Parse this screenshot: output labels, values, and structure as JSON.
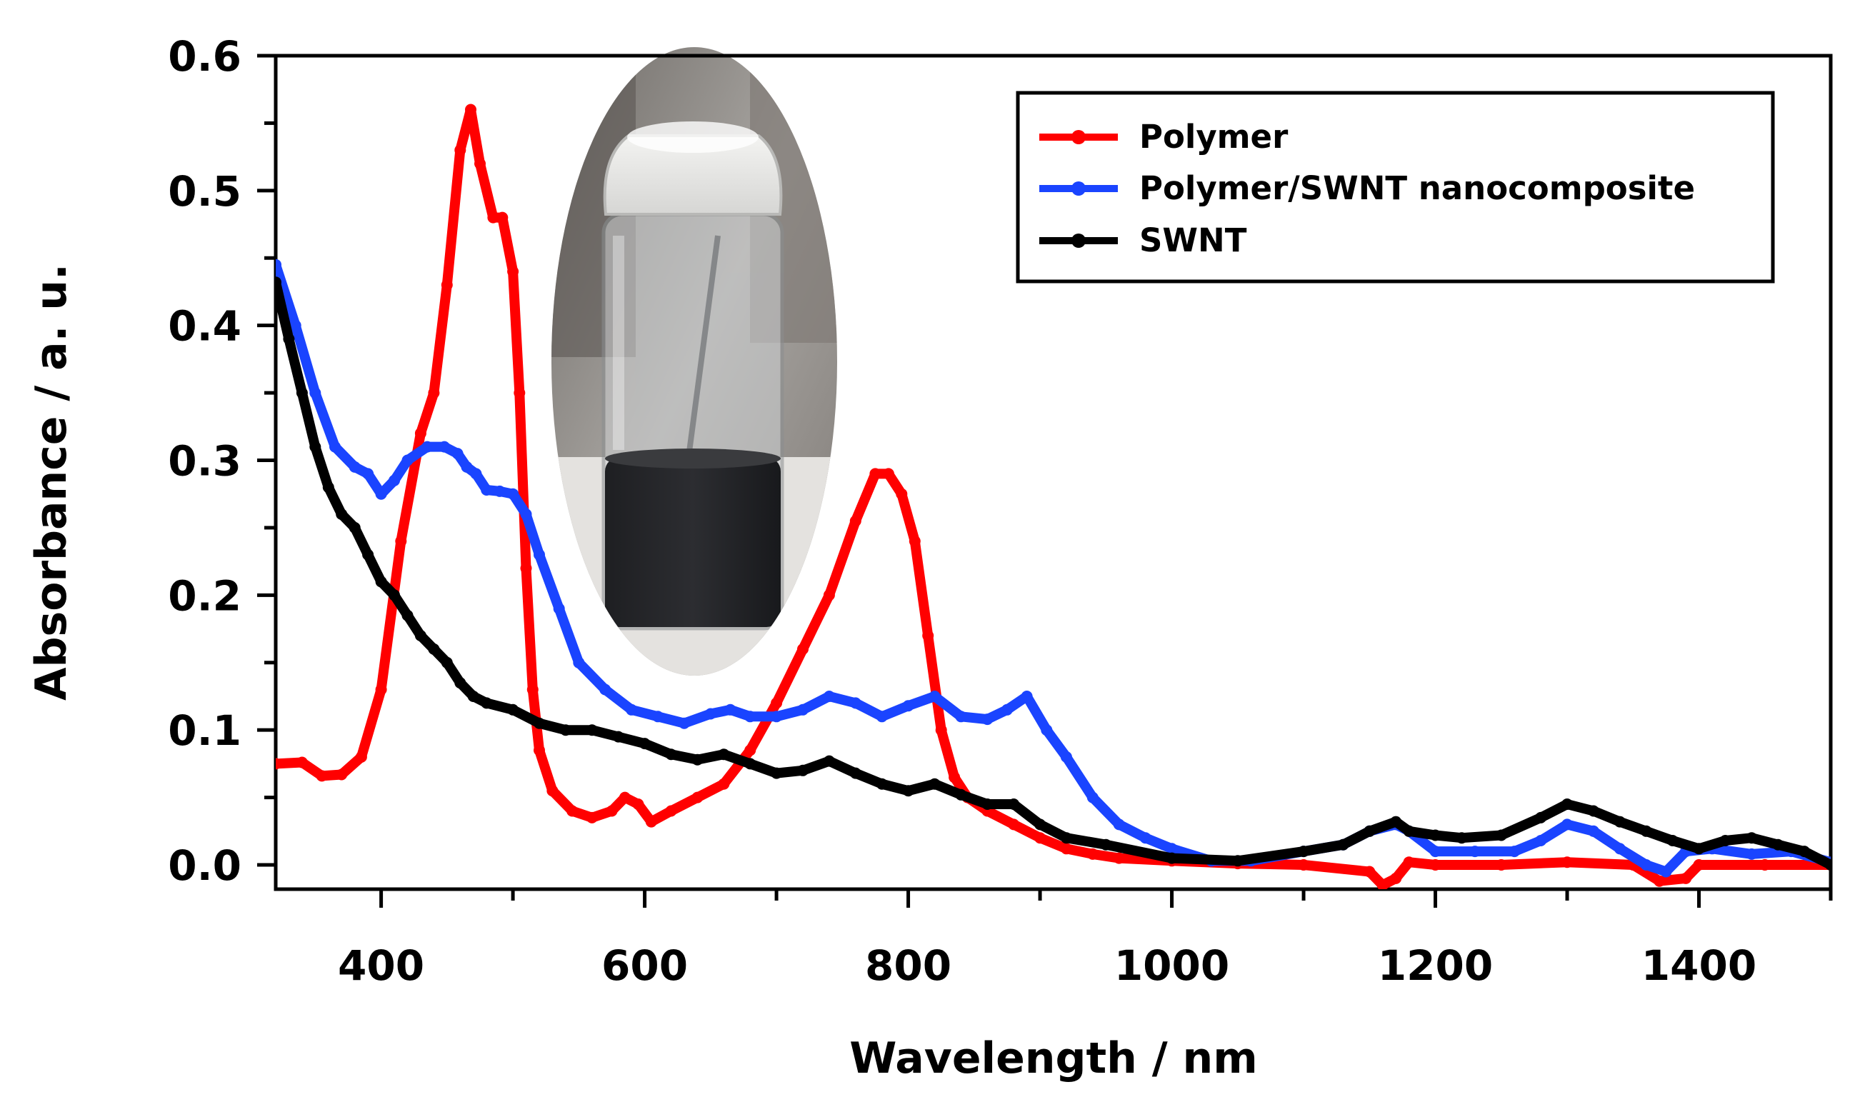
{
  "chart_data": {
    "type": "line",
    "title": "",
    "xlabel": "Wavelength / nm",
    "ylabel": "Absorbance / a. u.",
    "xlim": [
      320,
      1500
    ],
    "ylim": [
      -0.018,
      0.6
    ],
    "xticks": [
      400,
      600,
      800,
      1000,
      1200,
      1400
    ],
    "xtick_labels": [
      "400",
      "600",
      "800",
      "1000",
      "1200",
      "1400"
    ],
    "yticks": [
      0.0,
      0.1,
      0.2,
      0.3,
      0.4,
      0.5,
      0.6
    ],
    "ytick_labels": [
      "0.0",
      "0.1",
      "0.2",
      "0.3",
      "0.4",
      "0.5",
      "0.6"
    ],
    "grid": false,
    "legend_position": "top-right",
    "inset": "photo of a vial containing a dark dispersion",
    "series": [
      {
        "name": "Polymer",
        "color": "#ff0000",
        "marker": "circle",
        "x": [
          320,
          340,
          355,
          370,
          385,
          400,
          415,
          430,
          440,
          450,
          460,
          468,
          475,
          485,
          492,
          500,
          505,
          510,
          515,
          520,
          530,
          545,
          560,
          575,
          585,
          595,
          605,
          620,
          640,
          660,
          680,
          700,
          720,
          740,
          760,
          775,
          785,
          795,
          805,
          815,
          825,
          835,
          845,
          860,
          880,
          900,
          920,
          940,
          960,
          1000,
          1050,
          1100,
          1150,
          1160,
          1170,
          1180,
          1200,
          1250,
          1300,
          1350,
          1370,
          1390,
          1400,
          1450,
          1500
        ],
        "values": [
          0.075,
          0.076,
          0.066,
          0.067,
          0.08,
          0.13,
          0.24,
          0.32,
          0.35,
          0.43,
          0.53,
          0.56,
          0.52,
          0.48,
          0.48,
          0.44,
          0.35,
          0.22,
          0.13,
          0.085,
          0.055,
          0.04,
          0.035,
          0.04,
          0.05,
          0.045,
          0.032,
          0.04,
          0.05,
          0.06,
          0.085,
          0.12,
          0.16,
          0.2,
          0.255,
          0.29,
          0.29,
          0.275,
          0.24,
          0.17,
          0.1,
          0.065,
          0.05,
          0.04,
          0.03,
          0.02,
          0.012,
          0.008,
          0.005,
          0.003,
          0.001,
          0.0,
          -0.005,
          -0.015,
          -0.01,
          0.002,
          0.0,
          0.0,
          0.002,
          0.0,
          -0.012,
          -0.01,
          0.0,
          0.0,
          0.0
        ]
      },
      {
        "name": "Polymer/SWNT nanocomposite",
        "color": "#1a44ff",
        "marker": "circle",
        "x": [
          320,
          335,
          350,
          365,
          380,
          390,
          400,
          410,
          420,
          435,
          448,
          458,
          465,
          472,
          480,
          490,
          500,
          510,
          520,
          535,
          550,
          570,
          590,
          610,
          630,
          650,
          665,
          680,
          700,
          720,
          740,
          760,
          780,
          800,
          820,
          840,
          860,
          875,
          890,
          905,
          920,
          940,
          960,
          980,
          1000,
          1030,
          1060,
          1100,
          1130,
          1150,
          1170,
          1180,
          1200,
          1230,
          1260,
          1280,
          1300,
          1320,
          1340,
          1360,
          1375,
          1390,
          1410,
          1440,
          1470,
          1500
        ],
        "values": [
          0.445,
          0.4,
          0.35,
          0.31,
          0.295,
          0.29,
          0.275,
          0.285,
          0.3,
          0.31,
          0.31,
          0.305,
          0.295,
          0.29,
          0.278,
          0.277,
          0.275,
          0.26,
          0.23,
          0.19,
          0.15,
          0.13,
          0.115,
          0.11,
          0.105,
          0.112,
          0.115,
          0.11,
          0.11,
          0.115,
          0.125,
          0.12,
          0.11,
          0.118,
          0.125,
          0.11,
          0.108,
          0.115,
          0.125,
          0.1,
          0.08,
          0.05,
          0.03,
          0.02,
          0.012,
          0.003,
          0.003,
          0.01,
          0.015,
          0.025,
          0.03,
          0.025,
          0.01,
          0.01,
          0.01,
          0.018,
          0.03,
          0.025,
          0.012,
          0.0,
          -0.005,
          0.01,
          0.012,
          0.008,
          0.01,
          0.002
        ]
      },
      {
        "name": "SWNT",
        "color": "#000000",
        "marker": "circle",
        "x": [
          320,
          330,
          340,
          350,
          360,
          370,
          380,
          390,
          400,
          410,
          420,
          430,
          440,
          450,
          460,
          470,
          480,
          500,
          520,
          540,
          560,
          580,
          600,
          620,
          640,
          660,
          680,
          700,
          720,
          740,
          760,
          780,
          800,
          820,
          840,
          860,
          880,
          900,
          920,
          950,
          1000,
          1050,
          1100,
          1130,
          1150,
          1170,
          1180,
          1200,
          1220,
          1250,
          1280,
          1300,
          1320,
          1340,
          1360,
          1380,
          1400,
          1420,
          1440,
          1460,
          1480,
          1500
        ],
        "values": [
          0.432,
          0.39,
          0.35,
          0.31,
          0.28,
          0.26,
          0.25,
          0.23,
          0.21,
          0.2,
          0.185,
          0.17,
          0.16,
          0.15,
          0.135,
          0.125,
          0.12,
          0.115,
          0.105,
          0.1,
          0.1,
          0.095,
          0.09,
          0.082,
          0.078,
          0.082,
          0.075,
          0.068,
          0.07,
          0.077,
          0.068,
          0.06,
          0.055,
          0.06,
          0.052,
          0.045,
          0.045,
          0.03,
          0.02,
          0.015,
          0.005,
          0.003,
          0.01,
          0.015,
          0.025,
          0.032,
          0.025,
          0.022,
          0.02,
          0.022,
          0.035,
          0.045,
          0.04,
          0.032,
          0.025,
          0.018,
          0.012,
          0.018,
          0.02,
          0.015,
          0.01,
          0.0
        ]
      }
    ]
  }
}
